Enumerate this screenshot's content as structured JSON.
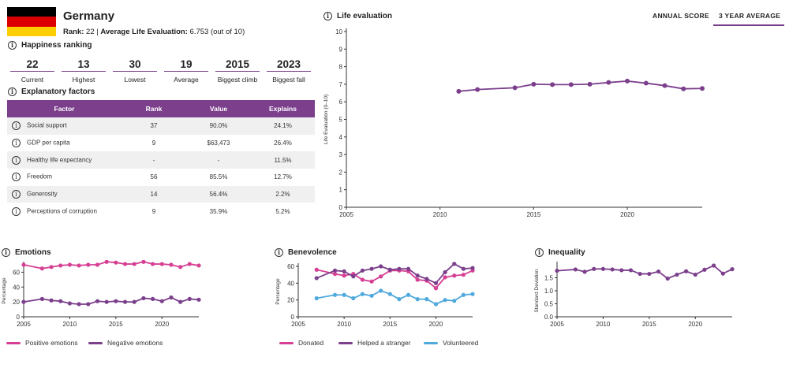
{
  "header": {
    "country": "Germany",
    "rank_label": "Rank:",
    "rank_value": "22",
    "separator": "|",
    "avg_label": "Average Life Evaluation:",
    "avg_value": "6.753 (out of 10)",
    "flag_colors": [
      "#000000",
      "#dd0000",
      "#ffce00"
    ]
  },
  "tabs": {
    "annual": "ANNUAL SCORE",
    "three_year": "3 YEAR AVERAGE"
  },
  "ranking": {
    "title": "Happiness ranking",
    "stats": [
      {
        "value": "22",
        "label": "Current"
      },
      {
        "value": "13",
        "label": "Highest"
      },
      {
        "value": "30",
        "label": "Lowest"
      },
      {
        "value": "19",
        "label": "Average"
      },
      {
        "value": "2015",
        "label": "Biggest climb"
      },
      {
        "value": "2023",
        "label": "Biggest fall"
      }
    ]
  },
  "factors": {
    "title": "Explanatory factors",
    "columns": [
      "Factor",
      "Rank",
      "Value",
      "Explains"
    ],
    "rows": [
      {
        "factor": "Social support",
        "rank": "37",
        "value": "90.0%",
        "explains": "24.1%"
      },
      {
        "factor": "GDP per capita",
        "rank": "9",
        "value": "$63,473",
        "explains": "26.4%"
      },
      {
        "factor": "Healthy life expectancy",
        "rank": "-",
        "value": "-",
        "explains": "11.5%"
      },
      {
        "factor": "Freedom",
        "rank": "56",
        "value": "85.5%",
        "explains": "12.7%"
      },
      {
        "factor": "Generosity",
        "rank": "14",
        "value": "56.4%",
        "explains": "2.2%"
      },
      {
        "factor": "Perceptions of corruption",
        "rank": "9",
        "value": "35.9%",
        "explains": "5.2%"
      }
    ]
  },
  "colors": {
    "purple": "#7b3f8c",
    "pink": "#d63f93",
    "blue": "#4fa9dd",
    "axis": "#333333"
  },
  "chart_data": [
    {
      "id": "life",
      "type": "line",
      "title": "Life evaluation",
      "ylabel": "Life Evaluation (0–10)",
      "xlabel": "",
      "xlim": [
        2005,
        2024
      ],
      "ylim": [
        0,
        10
      ],
      "xticks": [
        2005,
        2010,
        2015,
        2020
      ],
      "yticks": [
        0,
        1,
        2,
        3,
        4,
        5,
        6,
        7,
        8,
        9,
        10
      ],
      "series": [
        {
          "name": "Life evaluation",
          "color": "#7b3f8c",
          "x": [
            2011,
            2012,
            2014,
            2015,
            2016,
            2017,
            2018,
            2019,
            2020,
            2021,
            2022,
            2023,
            2024
          ],
          "values": [
            6.6,
            6.7,
            6.8,
            7.0,
            6.98,
            6.98,
            7.0,
            7.1,
            7.18,
            7.06,
            6.92,
            6.74,
            6.76
          ]
        }
      ]
    },
    {
      "id": "emotions",
      "type": "line",
      "title": "Emotions",
      "ylabel": "Percentage",
      "xlim": [
        2005,
        2024
      ],
      "ylim": [
        0,
        70
      ],
      "xticks": [
        2005,
        2010,
        2015,
        2020
      ],
      "yticks": [
        0,
        20,
        40,
        60
      ],
      "series": [
        {
          "name": "Positive emotions",
          "color": "#d63f93",
          "x": [
            2005,
            2007,
            2008,
            2009,
            2010,
            2011,
            2012,
            2013,
            2014,
            2015,
            2016,
            2017,
            2018,
            2019,
            2020,
            2021,
            2022,
            2023,
            2024
          ],
          "values": [
            70,
            65,
            67,
            69,
            70,
            69,
            70,
            70,
            74,
            73,
            71,
            71,
            74,
            71,
            71,
            70,
            67,
            71,
            69
          ]
        },
        {
          "name": "Negative emotions",
          "color": "#7b3f8c",
          "x": [
            2005,
            2007,
            2008,
            2009,
            2010,
            2011,
            2012,
            2013,
            2014,
            2015,
            2016,
            2017,
            2018,
            2019,
            2020,
            2021,
            2022,
            2023,
            2024
          ],
          "values": [
            20,
            24,
            22,
            21,
            18,
            17,
            17,
            21,
            20,
            21,
            20,
            20,
            25,
            24,
            21,
            26,
            20,
            24,
            23
          ]
        }
      ]
    },
    {
      "id": "benevolence",
      "type": "line",
      "title": "Benevolence",
      "ylabel": "Percentage",
      "xlim": [
        2005,
        2024
      ],
      "ylim": [
        0,
        60
      ],
      "xticks": [
        2005,
        2010,
        2015,
        2020
      ],
      "yticks": [
        0,
        20,
        40,
        60
      ],
      "series": [
        {
          "name": "Donated",
          "color": "#d63f93",
          "x": [
            2007,
            2009,
            2010,
            2011,
            2012,
            2013,
            2014,
            2015,
            2016,
            2017,
            2018,
            2019,
            2020,
            2021,
            2022,
            2023,
            2024
          ],
          "values": [
            56,
            51,
            49,
            51,
            44,
            42,
            48,
            55,
            55,
            54,
            44,
            43,
            34,
            47,
            49,
            50,
            55
          ]
        },
        {
          "name": "Helped a stranger",
          "color": "#7b3f8c",
          "x": [
            2007,
            2009,
            2010,
            2011,
            2012,
            2013,
            2014,
            2015,
            2016,
            2017,
            2018,
            2019,
            2020,
            2021,
            2022,
            2023,
            2024
          ],
          "values": [
            46,
            55,
            54,
            48,
            55,
            57,
            60,
            56,
            57,
            57,
            49,
            45,
            40,
            53,
            63,
            57,
            58
          ]
        },
        {
          "name": "Volunteered",
          "color": "#4fa9dd",
          "x": [
            2007,
            2009,
            2010,
            2011,
            2012,
            2013,
            2014,
            2015,
            2016,
            2017,
            2018,
            2019,
            2020,
            2021,
            2022,
            2023,
            2024
          ],
          "values": [
            22,
            26,
            26,
            22,
            27,
            25,
            31,
            27,
            21,
            26,
            21,
            21,
            15,
            20,
            19,
            26,
            27
          ]
        }
      ]
    },
    {
      "id": "inequality",
      "type": "line",
      "title": "Inequality",
      "ylabel": "Standard Deviation",
      "xlim": [
        2005,
        2024
      ],
      "ylim": [
        0,
        2
      ],
      "xticks": [
        2005,
        2010,
        2015,
        2020
      ],
      "yticks": [
        0.0,
        0.5,
        1.0,
        1.5
      ],
      "ytick_labels": [
        "0.0",
        "0.5",
        "1.0",
        "1.5"
      ],
      "series": [
        {
          "name": "Inequality",
          "color": "#7b3f8c",
          "x": [
            2005,
            2007,
            2008,
            2009,
            2010,
            2011,
            2012,
            2013,
            2014,
            2015,
            2016,
            2017,
            2018,
            2019,
            2020,
            2021,
            2022,
            2023,
            2024
          ],
          "values": [
            1.77,
            1.82,
            1.73,
            1.84,
            1.84,
            1.82,
            1.79,
            1.79,
            1.65,
            1.65,
            1.74,
            1.47,
            1.62,
            1.75,
            1.62,
            1.81,
            1.97,
            1.66,
            1.83
          ]
        }
      ]
    }
  ]
}
